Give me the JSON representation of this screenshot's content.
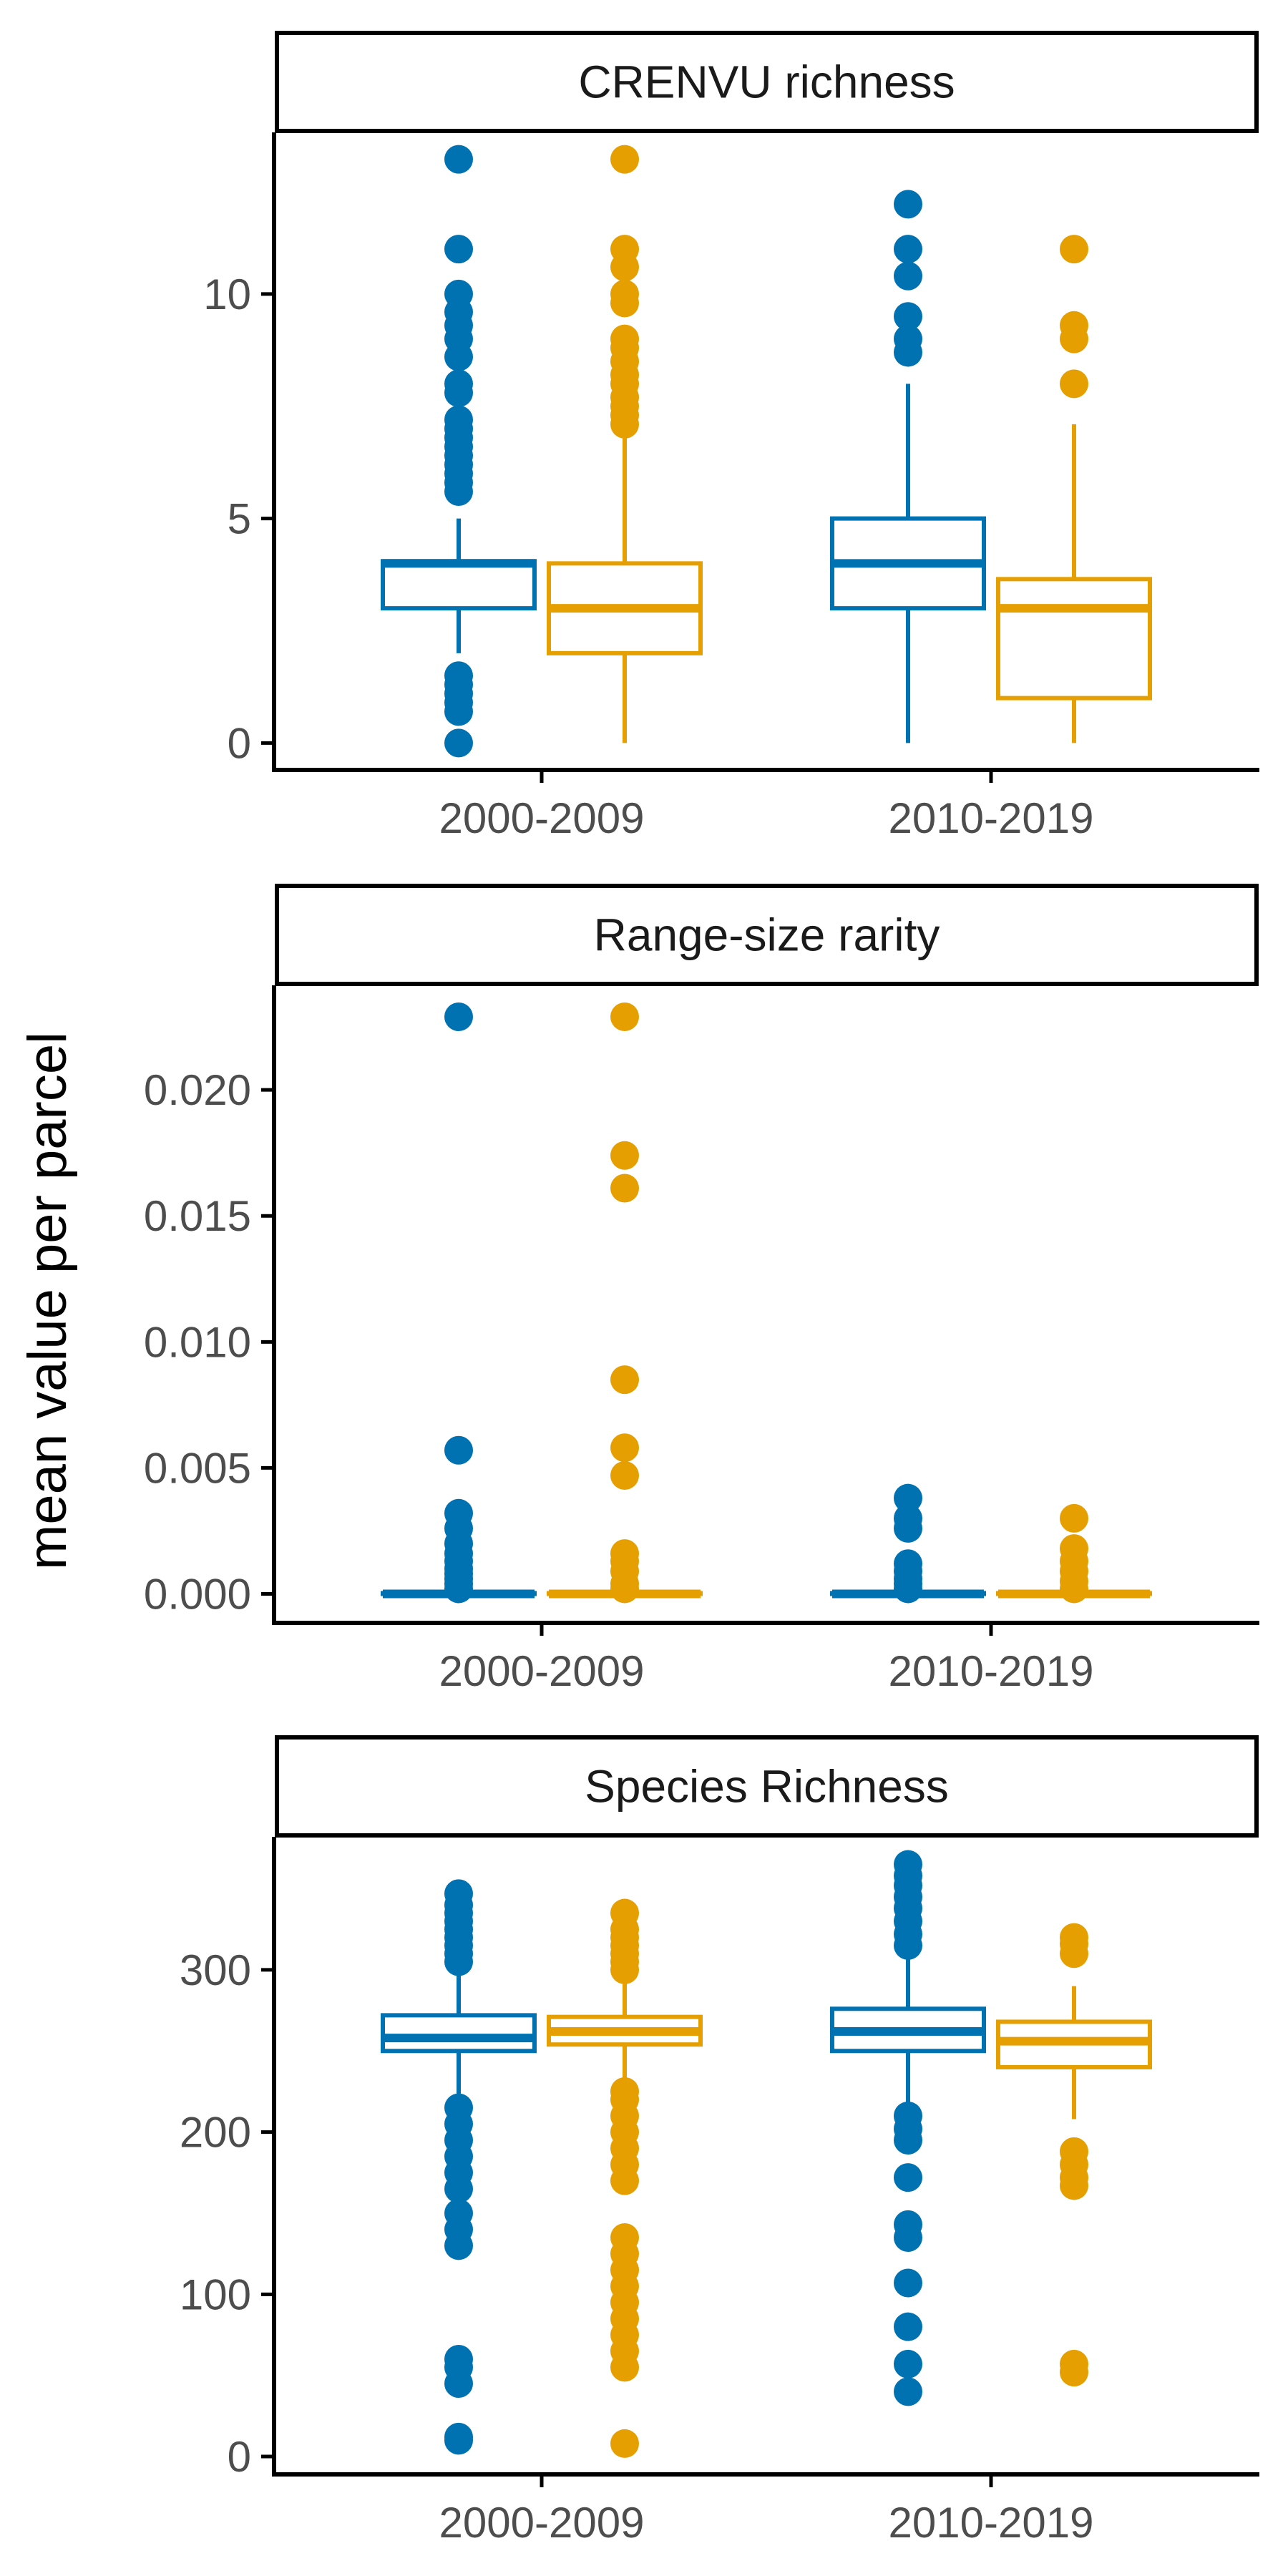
{
  "ylabel": "mean value per parcel",
  "colors": {
    "series_a": "#0072B2",
    "series_b": "#E69F00",
    "axis": "#000000",
    "tick_text": "#4d4d4d"
  },
  "chart_data": [
    {
      "type": "box",
      "title": "CRENVU richness",
      "categories": [
        "2000-2009",
        "2010-2019"
      ],
      "ylim": [
        -0.6,
        13.6
      ],
      "yticks": [
        0,
        5,
        10
      ],
      "ytick_labels": [
        "0",
        "5",
        "10"
      ],
      "series": [
        {
          "colorKey": "series_a",
          "boxes": [
            {
              "q1": 3,
              "median": 4,
              "q3": 4.05,
              "whislo": 2,
              "whishi": 5,
              "outliers": [
                0,
                0.7,
                0.9,
                1.1,
                1.3,
                1.5,
                5.6,
                5.8,
                6,
                6.2,
                6.4,
                6.6,
                6.8,
                7,
                7.2,
                7.8,
                8,
                8.6,
                9,
                9.3,
                9.6,
                10,
                11,
                13
              ]
            },
            {
              "q1": 3,
              "median": 4,
              "q3": 5,
              "whislo": 0,
              "whishi": 8,
              "outliers": [
                8.7,
                9,
                9.5,
                10.4,
                11,
                12
              ]
            }
          ]
        },
        {
          "colorKey": "series_b",
          "boxes": [
            {
              "q1": 2,
              "median": 3,
              "q3": 4,
              "whislo": 0,
              "whishi": 7,
              "outliers": [
                7.1,
                7.3,
                7.5,
                7.7,
                8,
                8.2,
                8.5,
                8.8,
                9,
                9.8,
                10,
                10.6,
                11,
                13
              ]
            },
            {
              "q1": 1,
              "median": 3,
              "q3": 3.65,
              "whislo": 0,
              "whishi": 7.1,
              "outliers": [
                8,
                9,
                9.3,
                11
              ]
            }
          ]
        }
      ]
    },
    {
      "type": "box",
      "title": "Range-size rarity",
      "categories": [
        "2000-2009",
        "2010-2019"
      ],
      "ylim": [
        -0.00115,
        0.02415
      ],
      "yticks": [
        0,
        0.005,
        0.01,
        0.015,
        0.02
      ],
      "ytick_labels": [
        "0.000",
        "0.005",
        "0.010",
        "0.015",
        "0.020"
      ],
      "series": [
        {
          "colorKey": "series_a",
          "boxes": [
            {
              "q1": 0,
              "median": 0,
              "q3": 3e-05,
              "whislo": 0,
              "whishi": 6e-05,
              "outliers": [
                0.0002,
                0.0004,
                0.0006,
                0.0008,
                0.001,
                0.0013,
                0.0016,
                0.002,
                0.0026,
                0.0032,
                0.0057,
                0.0229
              ]
            },
            {
              "q1": 0,
              "median": 0,
              "q3": 3e-05,
              "whislo": 0,
              "whishi": 6e-05,
              "outliers": [
                0.0002,
                0.0004,
                0.0006,
                0.0009,
                0.0012,
                0.0026,
                0.003,
                0.0038
              ]
            }
          ]
        },
        {
          "colorKey": "series_b",
          "boxes": [
            {
              "q1": 0,
              "median": 0,
              "q3": 3e-05,
              "whislo": 0,
              "whishi": 6e-05,
              "outliers": [
                0.0002,
                0.0004,
                0.0009,
                0.0013,
                0.0016,
                0.0047,
                0.0058,
                0.0085,
                0.0161,
                0.0174,
                0.0229
              ]
            },
            {
              "q1": 0,
              "median": 0,
              "q3": 3e-05,
              "whislo": 0,
              "whishi": 6e-05,
              "outliers": [
                0.0002,
                0.0005,
                0.0009,
                0.0013,
                0.0018,
                0.003
              ]
            }
          ]
        }
      ]
    },
    {
      "type": "box",
      "title": "Species Richness",
      "categories": [
        "2000-2009",
        "2010-2019"
      ],
      "ylim": [
        -11,
        382
      ],
      "yticks": [
        0,
        100,
        200,
        300
      ],
      "ytick_labels": [
        "0",
        "100",
        "200",
        "300"
      ],
      "series": [
        {
          "colorKey": "series_a",
          "boxes": [
            {
              "q1": 250,
              "median": 258,
              "q3": 272,
              "whislo": 222,
              "whishi": 302,
              "outliers": [
                10,
                12,
                45,
                55,
                60,
                130,
                140,
                150,
                165,
                175,
                185,
                195,
                205,
                215,
                305,
                310,
                315,
                320,
                325,
                330,
                335,
                340,
                347
              ]
            },
            {
              "q1": 250,
              "median": 262,
              "q3": 276,
              "whislo": 218,
              "whishi": 312,
              "outliers": [
                40,
                57,
                80,
                107,
                135,
                143,
                172,
                195,
                202,
                210,
                315,
                322,
                330,
                338,
                345,
                352,
                358,
                365
              ]
            }
          ]
        },
        {
          "colorKey": "series_b",
          "boxes": [
            {
              "q1": 254,
              "median": 262,
              "q3": 271,
              "whislo": 228,
              "whishi": 295,
              "outliers": [
                8,
                55,
                65,
                75,
                85,
                95,
                105,
                115,
                125,
                135,
                170,
                180,
                190,
                200,
                210,
                220,
                225,
                300,
                305,
                310,
                315,
                320,
                325,
                335
              ]
            },
            {
              "q1": 240,
              "median": 256,
              "q3": 268,
              "whislo": 208,
              "whishi": 290,
              "outliers": [
                52,
                57,
                167,
                172,
                180,
                188,
                310,
                316,
                320
              ]
            }
          ]
        }
      ]
    }
  ]
}
